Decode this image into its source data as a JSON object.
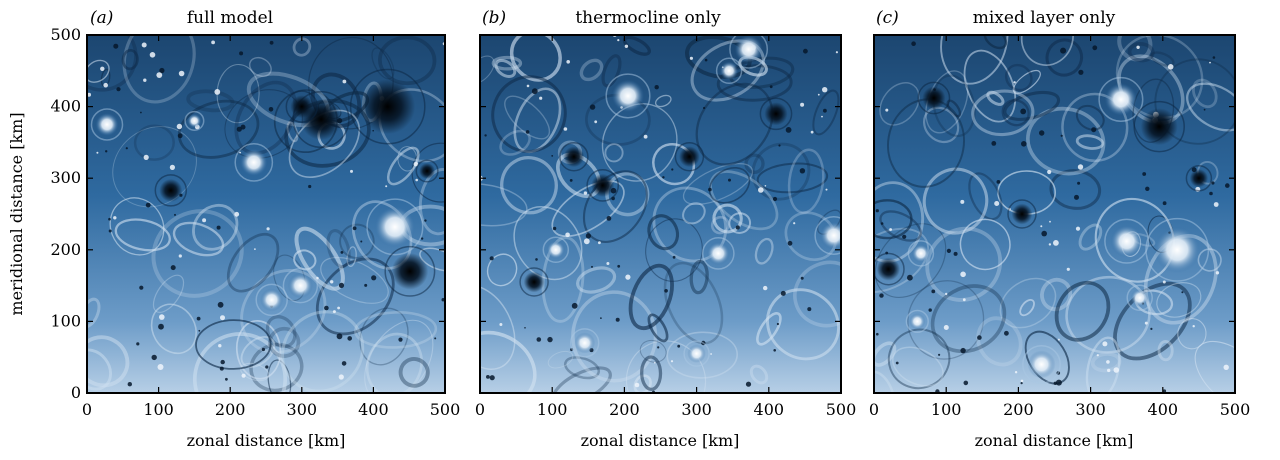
{
  "figure": {
    "ylabel": "meridional distance [km]",
    "colors": {
      "dark": "#061525",
      "mid": "#2e6aa3",
      "light": "#f4f8fc",
      "frame": "#000000"
    }
  },
  "chart_data": [
    {
      "type": "heatmap",
      "panel_letter": "a",
      "title": "full model",
      "xlabel": "zonal distance [km]",
      "ylabel": "meridional distance [km]",
      "xlim": [
        0,
        500
      ],
      "ylim": [
        0,
        500
      ],
      "xticks": [
        0,
        100,
        200,
        300,
        400,
        500
      ],
      "yticks": [
        0,
        100,
        200,
        300,
        400,
        500
      ],
      "colormap": "blue-white",
      "vortices": [
        {
          "x": 28,
          "y": 375,
          "r": 10,
          "sign": 1
        },
        {
          "x": 233,
          "y": 322,
          "r": 12,
          "sign": 1
        },
        {
          "x": 327,
          "y": 382,
          "r": 18,
          "sign": -1
        },
        {
          "x": 300,
          "y": 400,
          "r": 10,
          "sign": -1
        },
        {
          "x": 420,
          "y": 400,
          "r": 24,
          "sign": -1
        },
        {
          "x": 430,
          "y": 232,
          "r": 18,
          "sign": 1
        },
        {
          "x": 451,
          "y": 170,
          "r": 16,
          "sign": -1
        },
        {
          "x": 117,
          "y": 283,
          "r": 10,
          "sign": -1
        },
        {
          "x": 258,
          "y": 130,
          "r": 10,
          "sign": 1
        },
        {
          "x": 298,
          "y": 150,
          "r": 11,
          "sign": 1
        },
        {
          "x": 475,
          "y": 310,
          "r": 7,
          "sign": -1
        },
        {
          "x": 150,
          "y": 380,
          "r": 6,
          "sign": 1
        }
      ]
    },
    {
      "type": "heatmap",
      "panel_letter": "b",
      "title": "thermocline only",
      "xlabel": "zonal distance [km]",
      "ylabel": "",
      "xlim": [
        0,
        500
      ],
      "ylim": [
        0,
        500
      ],
      "xticks": [
        0,
        100,
        200,
        300,
        400,
        500
      ],
      "yticks": [
        0,
        100,
        200,
        300,
        400,
        500
      ],
      "colormap": "blue-white",
      "vortices": [
        {
          "x": 372,
          "y": 480,
          "r": 12,
          "sign": 1
        },
        {
          "x": 205,
          "y": 415,
          "r": 14,
          "sign": 1
        },
        {
          "x": 130,
          "y": 330,
          "r": 9,
          "sign": -1
        },
        {
          "x": 345,
          "y": 450,
          "r": 8,
          "sign": 1
        },
        {
          "x": 410,
          "y": 390,
          "r": 10,
          "sign": -1
        },
        {
          "x": 490,
          "y": 220,
          "r": 12,
          "sign": 1
        },
        {
          "x": 170,
          "y": 290,
          "r": 10,
          "sign": -1
        },
        {
          "x": 105,
          "y": 200,
          "r": 8,
          "sign": 1
        },
        {
          "x": 75,
          "y": 155,
          "r": 9,
          "sign": -1
        },
        {
          "x": 300,
          "y": 55,
          "r": 8,
          "sign": 1
        },
        {
          "x": 290,
          "y": 330,
          "r": 9,
          "sign": -1
        },
        {
          "x": 330,
          "y": 195,
          "r": 10,
          "sign": 1
        },
        {
          "x": 145,
          "y": 70,
          "r": 9,
          "sign": 1
        }
      ]
    },
    {
      "type": "heatmap",
      "panel_letter": "c",
      "title": "mixed layer only",
      "xlabel": "zonal distance [km]",
      "ylabel": "",
      "xlim": [
        0,
        500
      ],
      "ylim": [
        0,
        500
      ],
      "xticks": [
        0,
        100,
        200,
        300,
        400,
        500
      ],
      "yticks": [
        0,
        100,
        200,
        300,
        400,
        500
      ],
      "colormap": "blue-white",
      "vortices": [
        {
          "x": 342,
          "y": 410,
          "r": 14,
          "sign": 1
        },
        {
          "x": 395,
          "y": 372,
          "r": 16,
          "sign": -1
        },
        {
          "x": 420,
          "y": 200,
          "r": 20,
          "sign": 1
        },
        {
          "x": 350,
          "y": 212,
          "r": 14,
          "sign": 1
        },
        {
          "x": 20,
          "y": 173,
          "r": 10,
          "sign": -1
        },
        {
          "x": 65,
          "y": 195,
          "r": 8,
          "sign": 1
        },
        {
          "x": 205,
          "y": 250,
          "r": 9,
          "sign": -1
        },
        {
          "x": 83,
          "y": 412,
          "r": 10,
          "sign": -1
        },
        {
          "x": 368,
          "y": 133,
          "r": 8,
          "sign": 1
        },
        {
          "x": 232,
          "y": 40,
          "r": 12,
          "sign": 1
        },
        {
          "x": 60,
          "y": 100,
          "r": 7,
          "sign": 1
        },
        {
          "x": 450,
          "y": 300,
          "r": 8,
          "sign": -1
        }
      ]
    }
  ]
}
